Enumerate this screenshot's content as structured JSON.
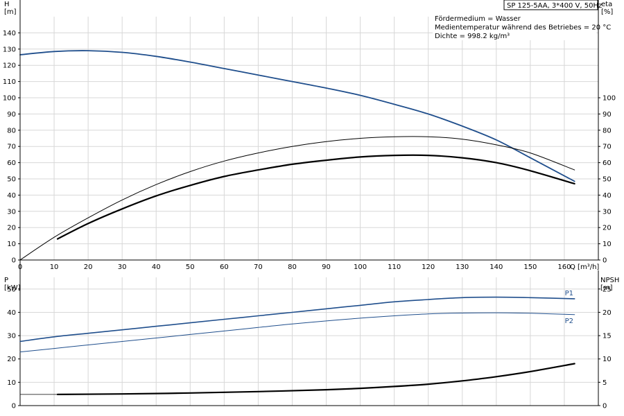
{
  "chart_data": [
    {
      "type": "line",
      "name": "top",
      "title": "SP 125-5AA, 3*400 V, 50Hz",
      "info": [
        "Fördermedium = Wasser",
        "Medientemperatur während des Betriebes = 20 °C",
        "Dichte = 998.2 kg/m³"
      ],
      "xlabel": "Q [m³/h]",
      "xlim": [
        0,
        170
      ],
      "x_ticks": [
        0,
        10,
        20,
        30,
        40,
        50,
        60,
        70,
        80,
        90,
        100,
        110,
        120,
        130,
        140,
        150,
        160
      ],
      "ylabel_left": [
        "H",
        "[m]"
      ],
      "ylim_left": [
        0,
        150
      ],
      "y_ticks_left": [
        0,
        10,
        20,
        30,
        40,
        50,
        60,
        70,
        80,
        90,
        100,
        110,
        120,
        130,
        140
      ],
      "ylabel_right": [
        "eta",
        "[%]"
      ],
      "ylim_right": [
        0,
        150
      ],
      "y_ticks_right": [
        0,
        10,
        20,
        30,
        40,
        50,
        60,
        70,
        80,
        90,
        100
      ],
      "grid": true,
      "series": [
        {
          "axis": "left",
          "color": "#1f4e8c",
          "width": 1.8,
          "x": [
            0,
            10,
            20,
            30,
            40,
            50,
            60,
            70,
            80,
            90,
            100,
            110,
            120,
            130,
            140,
            150,
            163
          ],
          "y": [
            126.5,
            128.5,
            129,
            128,
            125.5,
            122,
            118,
            114,
            110,
            106,
            101.5,
            96,
            90,
            82.5,
            74,
            63,
            48.5
          ]
        },
        {
          "axis": "right",
          "color": "#000000",
          "width": 1,
          "x": [
            0,
            10,
            20,
            30,
            40,
            50,
            60,
            70,
            80,
            90,
            100,
            110,
            120,
            130,
            140,
            150,
            163
          ],
          "y": [
            0,
            14,
            26,
            37,
            46.5,
            54.5,
            61,
            66,
            70,
            73,
            75,
            76,
            76,
            74.5,
            71,
            66,
            55.5
          ]
        },
        {
          "axis": "right",
          "color": "#000000",
          "width": 2.2,
          "x": [
            11,
            20,
            30,
            40,
            50,
            60,
            70,
            80,
            90,
            100,
            110,
            120,
            130,
            140,
            150,
            163
          ],
          "y": [
            13,
            22.5,
            31.5,
            39.5,
            46,
            51.5,
            55.5,
            59,
            61.5,
            63.5,
            64.5,
            64.5,
            63,
            60,
            55,
            47
          ]
        }
      ]
    },
    {
      "type": "line",
      "name": "bottom",
      "xlim": [
        0,
        170
      ],
      "ylabel_left": [
        "P",
        "[kW]"
      ],
      "ylim_left": [
        0,
        55
      ],
      "y_ticks_left": [
        0,
        10,
        20,
        30,
        40,
        50
      ],
      "ylabel_right": [
        "NPSH",
        "[m]"
      ],
      "ylim_right": [
        0,
        27.5
      ],
      "y_ticks_right": [
        0,
        5,
        10,
        15,
        20,
        25
      ],
      "grid": true,
      "series": [
        {
          "name": "P1",
          "axis": "left",
          "color": "#1f4e8c",
          "width": 1.6,
          "x": [
            0,
            10,
            20,
            30,
            40,
            50,
            60,
            70,
            80,
            90,
            100,
            110,
            120,
            130,
            140,
            150,
            163
          ],
          "y": [
            27.5,
            29.5,
            31,
            32.5,
            34,
            35.5,
            37,
            38.5,
            40,
            41.5,
            43,
            44.5,
            45.5,
            46.3,
            46.5,
            46.3,
            45.8
          ]
        },
        {
          "name": "P2",
          "axis": "left",
          "color": "#1f4e8c",
          "width": 1,
          "x": [
            0,
            10,
            20,
            30,
            40,
            50,
            60,
            70,
            80,
            90,
            100,
            110,
            120,
            130,
            140,
            150,
            163
          ],
          "y": [
            23,
            24.5,
            26,
            27.5,
            29,
            30.5,
            32,
            33.5,
            35,
            36.3,
            37.5,
            38.5,
            39.3,
            39.7,
            39.8,
            39.6,
            39
          ]
        },
        {
          "axis": "right",
          "color": "#000000",
          "width": 0.8,
          "x": [
            0,
            11
          ],
          "y": [
            2.4,
            2.4
          ]
        },
        {
          "axis": "right",
          "color": "#000000",
          "width": 2.2,
          "x": [
            11,
            30,
            50,
            70,
            90,
            100,
            110,
            120,
            130,
            140,
            150,
            163
          ],
          "y": [
            2.4,
            2.5,
            2.7,
            3,
            3.4,
            3.7,
            4.1,
            4.6,
            5.3,
            6.2,
            7.3,
            9
          ]
        }
      ]
    }
  ]
}
